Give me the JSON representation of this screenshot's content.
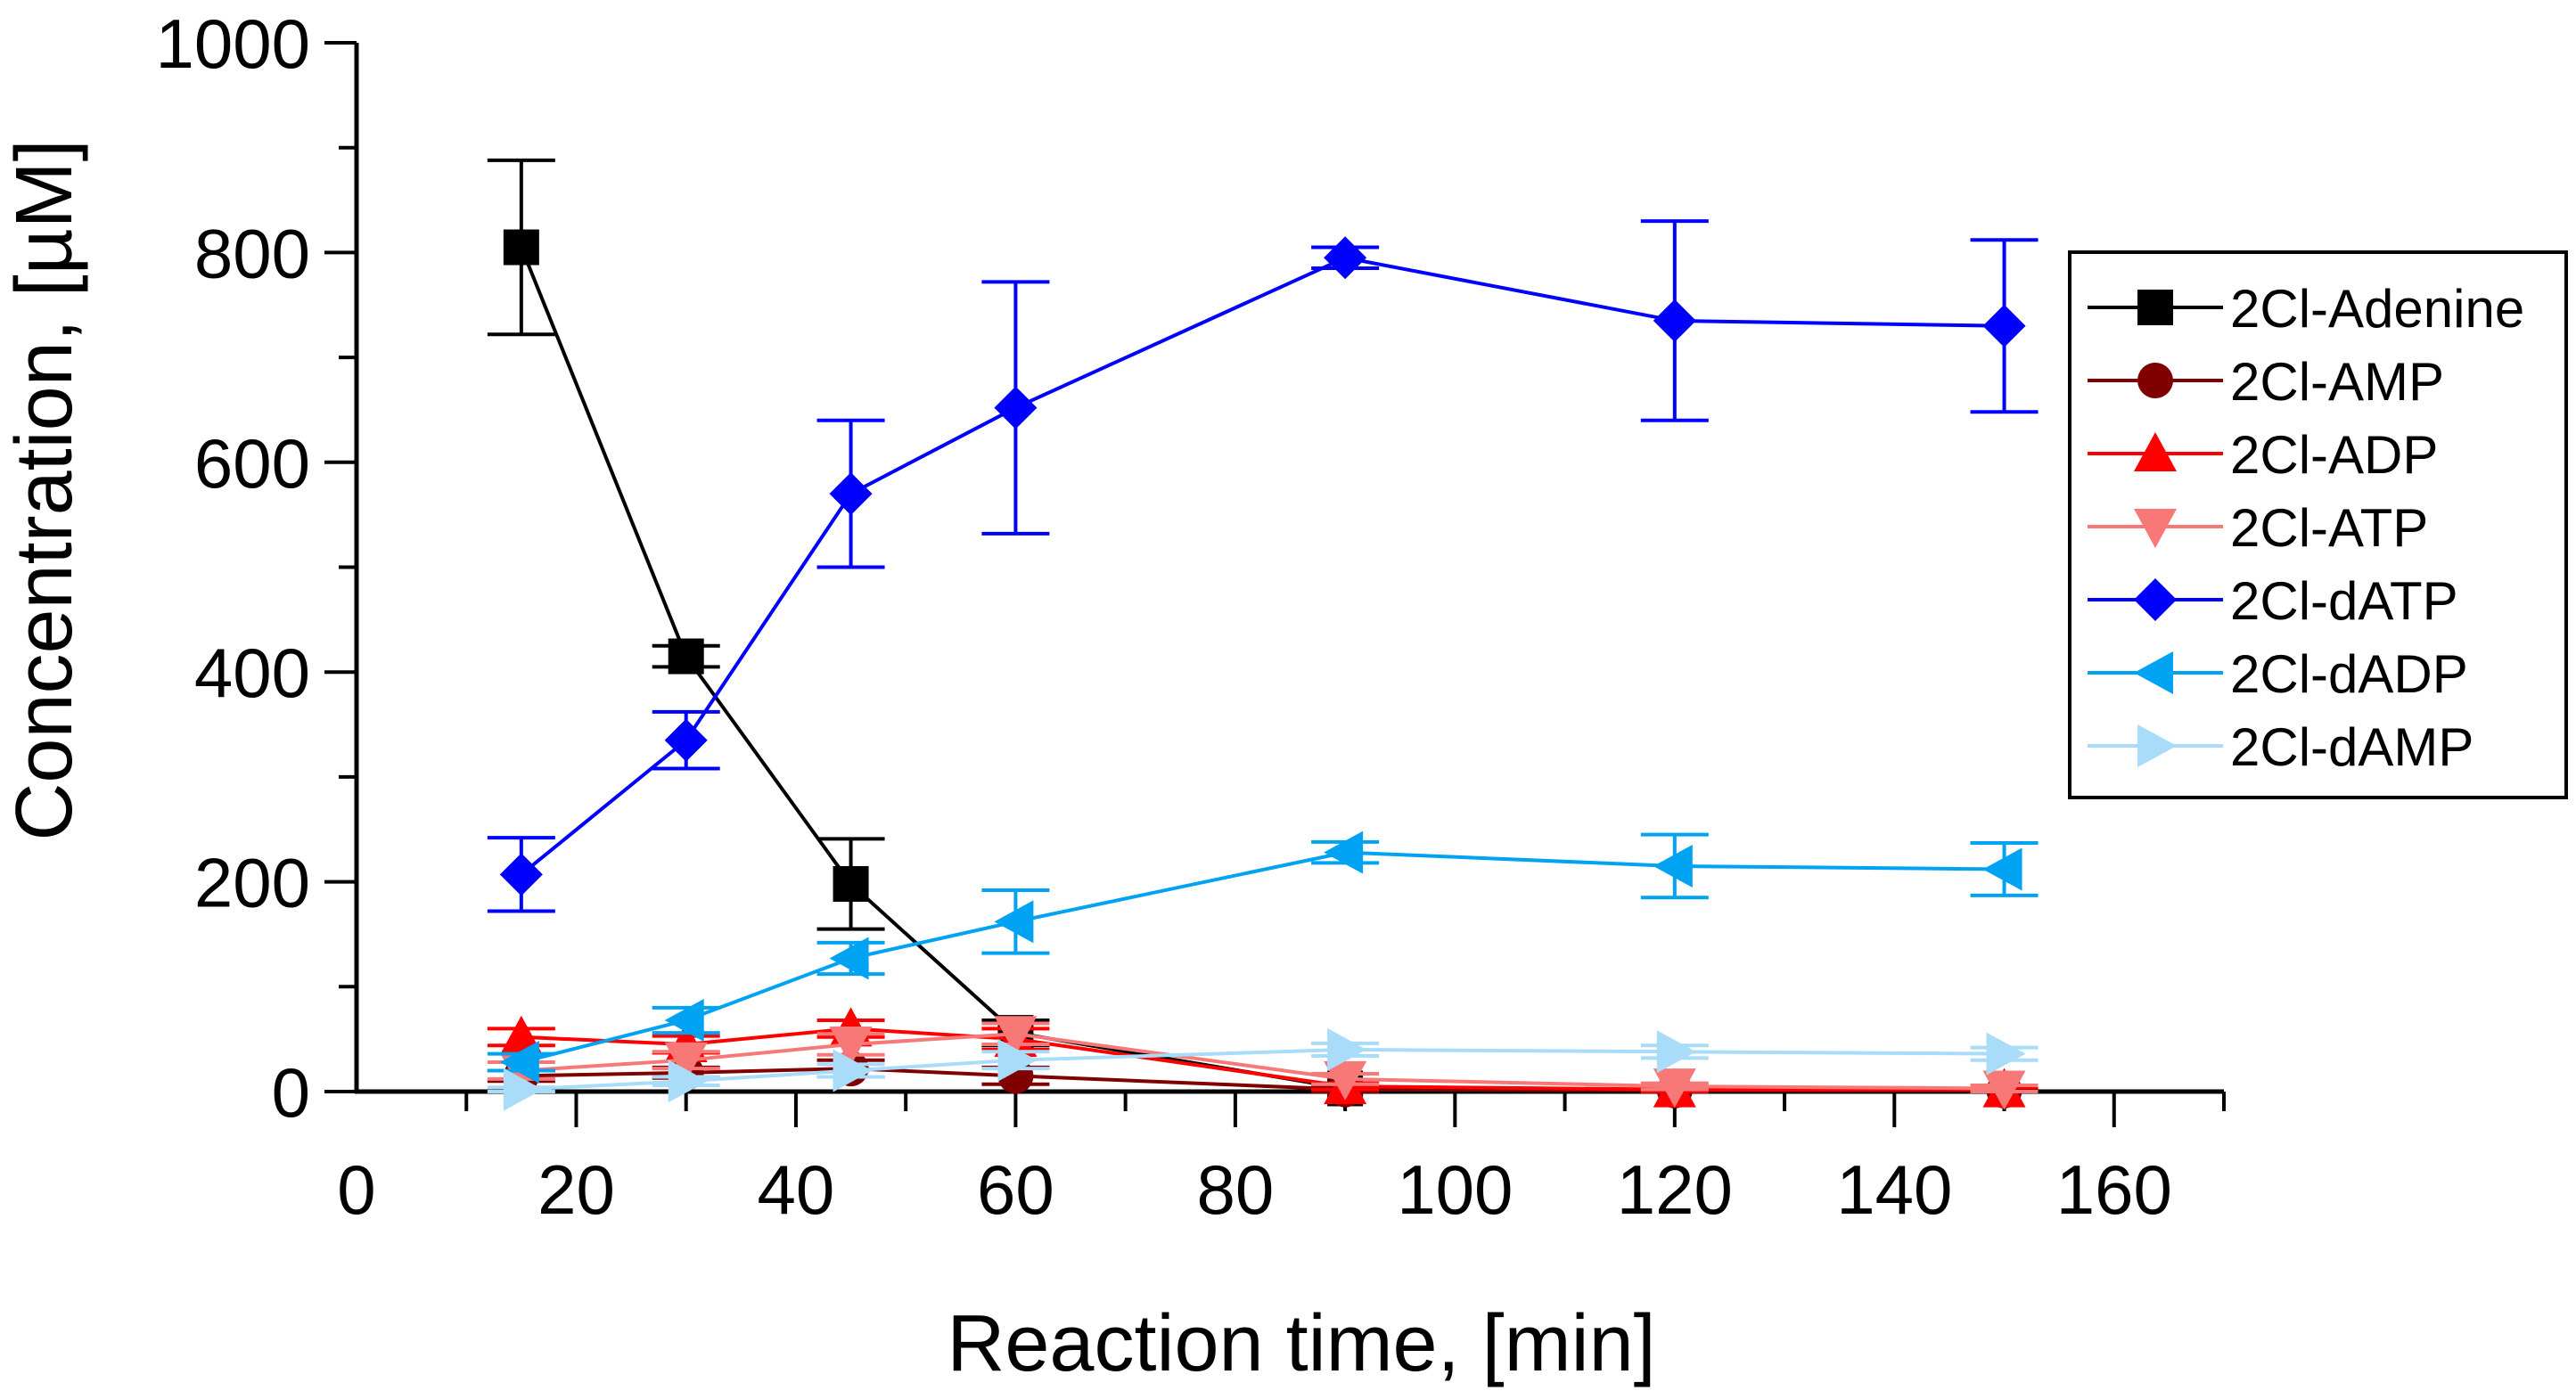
{
  "chart_data": {
    "type": "line",
    "title": "",
    "xlabel": "Reaction time, [min]",
    "ylabel": "Concentration, [µM]",
    "xlim": [
      0,
      170
    ],
    "ylim": [
      0,
      1000
    ],
    "x_ticks": [
      0,
      20,
      40,
      60,
      80,
      100,
      120,
      140,
      160
    ],
    "y_ticks": [
      0,
      200,
      400,
      600,
      800,
      1000
    ],
    "x_tick_labels": [
      "0",
      "20",
      "40",
      "60",
      "80",
      "100",
      "120",
      "140",
      "160"
    ],
    "y_tick_labels": [
      "0",
      "200",
      "400",
      "600",
      "800",
      "1000"
    ],
    "legend_position": "right",
    "x": [
      15,
      30,
      45,
      60,
      90,
      120,
      150
    ],
    "series": [
      {
        "name": "2Cl-Adenine",
        "color": "#000000",
        "marker": "square",
        "points": [
          {
            "x": 15,
            "y": 805,
            "err": 83
          },
          {
            "x": 30,
            "y": 415,
            "err": 10
          },
          {
            "x": 45,
            "y": 198,
            "err": 43
          },
          {
            "x": 60,
            "y": 56,
            "err": 12
          },
          {
            "x": 90,
            "y": 3,
            "err": 2
          }
        ]
      },
      {
        "name": "2Cl-AMP",
        "color": "#800000",
        "marker": "circle",
        "points": [
          {
            "x": 15,
            "y": 15,
            "err": 5
          },
          {
            "x": 30,
            "y": 18,
            "err": 5
          },
          {
            "x": 45,
            "y": 22,
            "err": 8
          },
          {
            "x": 60,
            "y": 15,
            "err": 8
          },
          {
            "x": 90,
            "y": 2,
            "err": 2
          },
          {
            "x": 120,
            "y": 1,
            "err": 1
          },
          {
            "x": 150,
            "y": 1,
            "err": 1
          }
        ]
      },
      {
        "name": "2Cl-ADP",
        "color": "#ff0000",
        "marker": "triangle-up",
        "points": [
          {
            "x": 15,
            "y": 52,
            "err": 8
          },
          {
            "x": 30,
            "y": 45,
            "err": 8
          },
          {
            "x": 45,
            "y": 60,
            "err": 8
          },
          {
            "x": 60,
            "y": 50,
            "err": 10
          },
          {
            "x": 90,
            "y": 5,
            "err": 3
          },
          {
            "x": 120,
            "y": 2,
            "err": 2
          },
          {
            "x": 150,
            "y": 2,
            "err": 2
          }
        ]
      },
      {
        "name": "2Cl-ATP",
        "color": "#f87878",
        "marker": "triangle-down",
        "points": [
          {
            "x": 15,
            "y": 20,
            "err": 8
          },
          {
            "x": 30,
            "y": 30,
            "err": 8
          },
          {
            "x": 45,
            "y": 45,
            "err": 10
          },
          {
            "x": 60,
            "y": 55,
            "err": 10
          },
          {
            "x": 90,
            "y": 12,
            "err": 5
          },
          {
            "x": 120,
            "y": 5,
            "err": 3
          },
          {
            "x": 150,
            "y": 3,
            "err": 3
          }
        ]
      },
      {
        "name": "2Cl-dATP",
        "color": "#0000ff",
        "marker": "diamond",
        "points": [
          {
            "x": 15,
            "y": 207,
            "err": 35
          },
          {
            "x": 30,
            "y": 335,
            "err": 27
          },
          {
            "x": 45,
            "y": 570,
            "err": 70
          },
          {
            "x": 60,
            "y": 652,
            "err": 120
          },
          {
            "x": 90,
            "y": 795,
            "err": 10
          },
          {
            "x": 120,
            "y": 735,
            "err": 95
          },
          {
            "x": 150,
            "y": 730,
            "err": 82
          }
        ]
      },
      {
        "name": "2Cl-dADP",
        "color": "#00a2f2",
        "marker": "triangle-left",
        "points": [
          {
            "x": 15,
            "y": 28,
            "err": 8
          },
          {
            "x": 30,
            "y": 68,
            "err": 12
          },
          {
            "x": 45,
            "y": 127,
            "err": 15
          },
          {
            "x": 60,
            "y": 162,
            "err": 30
          },
          {
            "x": 90,
            "y": 228,
            "err": 10
          },
          {
            "x": 120,
            "y": 215,
            "err": 30
          },
          {
            "x": 150,
            "y": 212,
            "err": 25
          }
        ]
      },
      {
        "name": "2Cl-dAMP",
        "color": "#a8dcf8",
        "marker": "triangle-right",
        "points": [
          {
            "x": 15,
            "y": 2,
            "err": 2
          },
          {
            "x": 30,
            "y": 10,
            "err": 4
          },
          {
            "x": 45,
            "y": 20,
            "err": 6
          },
          {
            "x": 60,
            "y": 30,
            "err": 8
          },
          {
            "x": 90,
            "y": 40,
            "err": 6
          },
          {
            "x": 120,
            "y": 38,
            "err": 6
          },
          {
            "x": 150,
            "y": 36,
            "err": 6
          }
        ]
      }
    ]
  }
}
